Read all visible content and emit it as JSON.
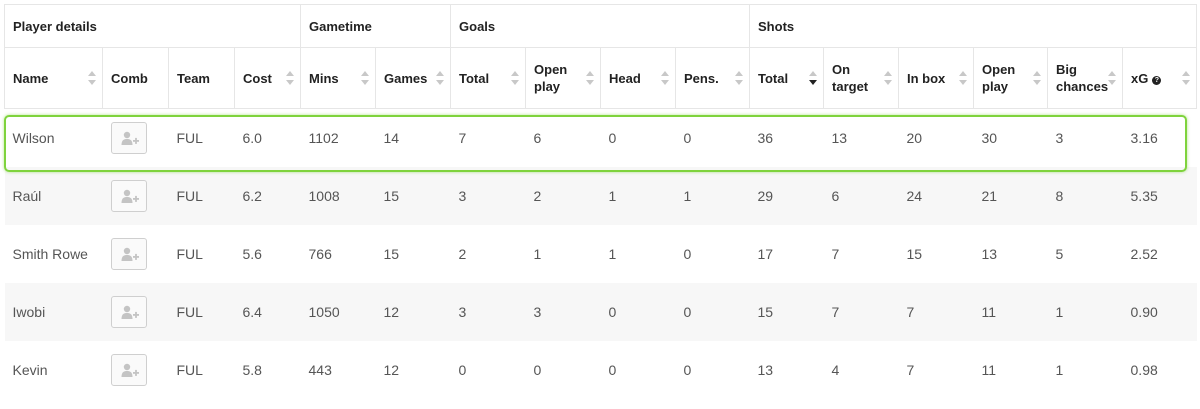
{
  "groups": [
    {
      "label": "Player details",
      "span": 4
    },
    {
      "label": "Gametime",
      "span": 2
    },
    {
      "label": "Goals",
      "span": 4
    },
    {
      "label": "Shots",
      "span": 6
    }
  ],
  "columns": [
    {
      "key": "name",
      "label": "Name",
      "sort": "none"
    },
    {
      "key": "comb",
      "label": "Comb",
      "sort": ""
    },
    {
      "key": "team",
      "label": "Team",
      "sort": ""
    },
    {
      "key": "cost",
      "label": "Cost",
      "sort": "none"
    },
    {
      "key": "mins",
      "label": "Mins",
      "sort": "none"
    },
    {
      "key": "games",
      "label": "Games",
      "sort": "none"
    },
    {
      "key": "goals_total",
      "label": "Total",
      "sort": "none"
    },
    {
      "key": "goals_open",
      "label": "Open play",
      "sort": "none"
    },
    {
      "key": "goals_head",
      "label": "Head",
      "sort": "none"
    },
    {
      "key": "goals_pens",
      "label": "Pens.",
      "sort": "none"
    },
    {
      "key": "shots_total",
      "label": "Total",
      "sort": "desc"
    },
    {
      "key": "shots_on",
      "label": "On target",
      "sort": "none"
    },
    {
      "key": "shots_box",
      "label": "In box",
      "sort": "none"
    },
    {
      "key": "shots_open",
      "label": "Open play",
      "sort": "none"
    },
    {
      "key": "big_chances",
      "label": "Big chances",
      "sort": "none"
    },
    {
      "key": "xg",
      "label": "xG",
      "sort": "none",
      "help": "?"
    }
  ],
  "rows": [
    {
      "name": "Wilson",
      "team": "FUL",
      "cost": "6.0",
      "mins": "1102",
      "games": "14",
      "goals_total": "7",
      "goals_open": "6",
      "goals_head": "0",
      "goals_pens": "0",
      "shots_total": "36",
      "shots_on": "13",
      "shots_box": "20",
      "shots_open": "30",
      "big_chances": "3",
      "xg": "3.16"
    },
    {
      "name": "Raúl",
      "team": "FUL",
      "cost": "6.2",
      "mins": "1008",
      "games": "15",
      "goals_total": "3",
      "goals_open": "2",
      "goals_head": "1",
      "goals_pens": "1",
      "shots_total": "29",
      "shots_on": "6",
      "shots_box": "24",
      "shots_open": "21",
      "big_chances": "8",
      "xg": "5.35"
    },
    {
      "name": "Smith Rowe",
      "team": "FUL",
      "cost": "5.6",
      "mins": "766",
      "games": "15",
      "goals_total": "2",
      "goals_open": "1",
      "goals_head": "1",
      "goals_pens": "0",
      "shots_total": "17",
      "shots_on": "7",
      "shots_box": "15",
      "shots_open": "13",
      "big_chances": "5",
      "xg": "2.52"
    },
    {
      "name": "Iwobi",
      "team": "FUL",
      "cost": "6.4",
      "mins": "1050",
      "games": "12",
      "goals_total": "3",
      "goals_open": "3",
      "goals_head": "0",
      "goals_pens": "0",
      "shots_total": "15",
      "shots_on": "7",
      "shots_box": "7",
      "shots_open": "11",
      "big_chances": "1",
      "xg": "0.90"
    },
    {
      "name": "Kevin",
      "team": "FUL",
      "cost": "5.8",
      "mins": "443",
      "games": "12",
      "goals_total": "0",
      "goals_open": "0",
      "goals_head": "0",
      "goals_pens": "0",
      "shots_total": "13",
      "shots_on": "4",
      "shots_box": "7",
      "shots_open": "11",
      "big_chances": "1",
      "xg": "0.98"
    }
  ],
  "icons": {
    "comb": "add-user-icon",
    "sort": "sort-arrows-icon"
  },
  "colors": {
    "highlight": "#7fd33d",
    "row_alt": "#f7f7f7"
  }
}
